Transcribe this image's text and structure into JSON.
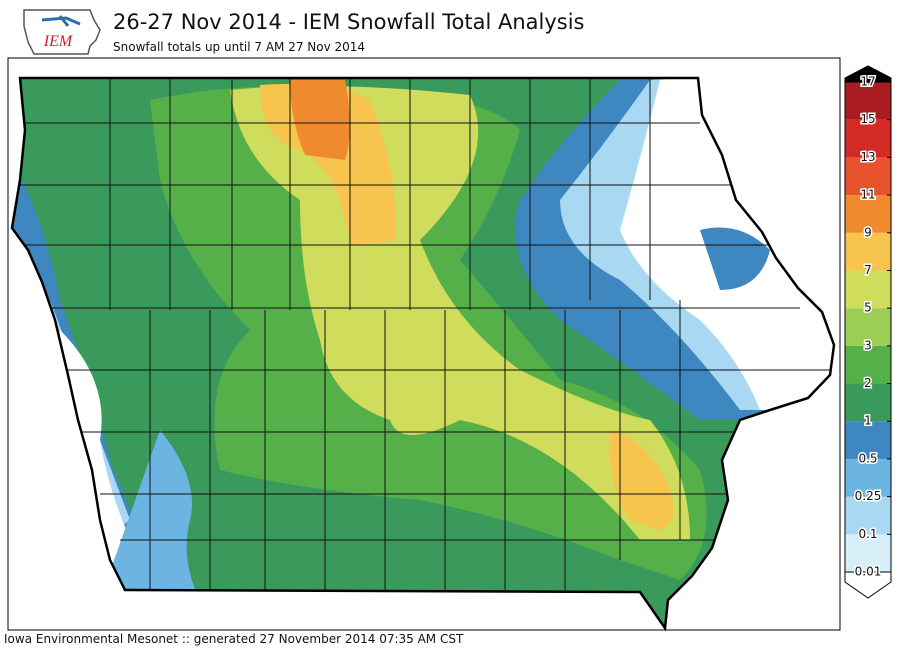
{
  "header": {
    "logo": "IEM",
    "title": "26-27 Nov 2014 - IEM Snowfall Total Analysis",
    "subtitle": "Snowfall totals up until 7 AM 27 Nov 2014"
  },
  "colorbar": {
    "levels": [
      0.01,
      0.1,
      0.25,
      0.5,
      1,
      2,
      3,
      5,
      7,
      9,
      11,
      13,
      15,
      17
    ],
    "under_color": "#ffffff",
    "over_color": "#000000",
    "colors": [
      "#d8eef9",
      "#a8d8f2",
      "#6cb4e2",
      "#3f87c0",
      "#3a9a5c",
      "#55b04a",
      "#9ccd55",
      "#cfdc5c",
      "#f7c44e",
      "#f08a2e",
      "#e6532c",
      "#d22a25",
      "#a81c22"
    ]
  },
  "footer": "Iowa Environmental Mesonet :: generated 27 November 2014 07:35 AM CST"
}
